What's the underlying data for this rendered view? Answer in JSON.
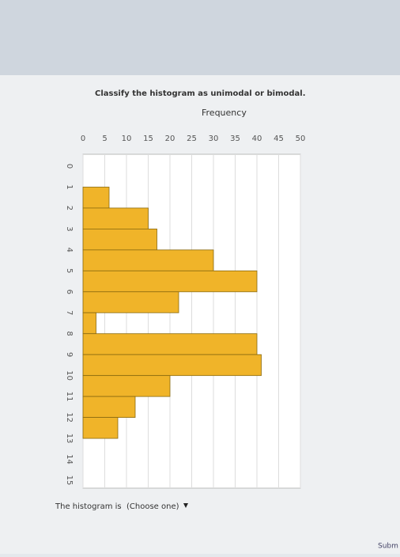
{
  "header": {
    "title": "Classify the histogram as unimodal or bimodal."
  },
  "chart_data": {
    "type": "histogram",
    "y_label": "Frequency",
    "bins": [
      0,
      1,
      2,
      3,
      4,
      5,
      6,
      7,
      8,
      9,
      10,
      11,
      12,
      13,
      14,
      15
    ],
    "values": [
      0,
      6,
      15,
      17,
      30,
      40,
      22,
      3,
      40,
      41,
      20,
      12,
      8,
      0,
      0
    ],
    "color": "#f0b429",
    "ylim": [
      0,
      50
    ],
    "yticks": [
      0,
      5,
      10,
      15,
      20,
      25,
      30,
      35,
      40,
      45,
      50
    ],
    "grid": true
  },
  "question": {
    "text": "The histogram is",
    "dropdown": "(Choose one)"
  },
  "footer": {
    "button": "Subm"
  }
}
